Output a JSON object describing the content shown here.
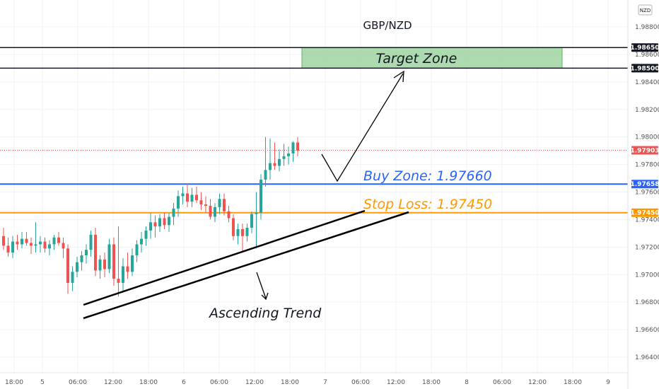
{
  "title": "GBP/NZD",
  "currency_badge": "NZD",
  "colors": {
    "up": "#26a69a",
    "down": "#ef5350",
    "buy": "#2962ff",
    "stop": "#ff9800",
    "target_fill": "#a5d6a7",
    "target_border": "#4caf50",
    "current": "#ef5350",
    "grid": "#f0f3fa"
  },
  "chart_data": {
    "type": "candlestick",
    "title": "GBP/NZD",
    "y_ticks": [
      "1.96400",
      "1.96600",
      "1.96800",
      "1.97000",
      "1.97200",
      "1.97400",
      "1.97600",
      "1.97800",
      "1.98000",
      "1.98200",
      "1.98400",
      "1.98600",
      "1.98800"
    ],
    "x_ticks": [
      "18:00",
      "5",
      "06:00",
      "12:00",
      "18:00",
      "6",
      "06:00",
      "12:00",
      "18:00",
      "7",
      "06:00",
      "12:00",
      "18:00",
      "8",
      "06:00",
      "12:00",
      "18:00",
      "9"
    ],
    "ylim": [
      1.9633,
      1.9905
    ],
    "grid": true,
    "price_tags": {
      "target_top": "1.98650",
      "target_bottom": "1.98500",
      "current": "1.97903",
      "buy": "1.97658",
      "stop": "1.97450"
    },
    "levels": {
      "target_top": 1.9865,
      "target_bottom": 1.985,
      "current": 1.97903,
      "buy": 1.97658,
      "stop": 1.9745
    },
    "annotations": {
      "target": "Target Zone",
      "buy": "Buy Zone: 1.97660",
      "stop": "Stop Loss: 1.97450",
      "trend": "Ascending Trend"
    },
    "candles": [
      {
        "o": 1.9728,
        "h": 1.9734,
        "l": 1.9718,
        "c": 1.9721
      },
      {
        "o": 1.9721,
        "h": 1.9727,
        "l": 1.9713,
        "c": 1.9716
      },
      {
        "o": 1.9716,
        "h": 1.9728,
        "l": 1.9712,
        "c": 1.9724
      },
      {
        "o": 1.9724,
        "h": 1.9729,
        "l": 1.9718,
        "c": 1.9722
      },
      {
        "o": 1.9722,
        "h": 1.9731,
        "l": 1.9719,
        "c": 1.9726
      },
      {
        "o": 1.9726,
        "h": 1.9731,
        "l": 1.9721,
        "c": 1.9723
      },
      {
        "o": 1.9723,
        "h": 1.9727,
        "l": 1.9715,
        "c": 1.9721
      },
      {
        "o": 1.9721,
        "h": 1.9738,
        "l": 1.9716,
        "c": 1.9722
      },
      {
        "o": 1.9722,
        "h": 1.9728,
        "l": 1.9716,
        "c": 1.9724
      },
      {
        "o": 1.9724,
        "h": 1.9727,
        "l": 1.9716,
        "c": 1.9719
      },
      {
        "o": 1.9719,
        "h": 1.9725,
        "l": 1.9714,
        "c": 1.9722
      },
      {
        "o": 1.9722,
        "h": 1.9729,
        "l": 1.9718,
        "c": 1.9727
      },
      {
        "o": 1.9727,
        "h": 1.9731,
        "l": 1.9721,
        "c": 1.9723
      },
      {
        "o": 1.9723,
        "h": 1.9727,
        "l": 1.9712,
        "c": 1.9719
      },
      {
        "o": 1.9719,
        "h": 1.9722,
        "l": 1.9686,
        "c": 1.9694
      },
      {
        "o": 1.9694,
        "h": 1.9706,
        "l": 1.9688,
        "c": 1.9702
      },
      {
        "o": 1.9702,
        "h": 1.9713,
        "l": 1.9698,
        "c": 1.9709
      },
      {
        "o": 1.9709,
        "h": 1.9717,
        "l": 1.9703,
        "c": 1.9714
      },
      {
        "o": 1.9714,
        "h": 1.9722,
        "l": 1.9708,
        "c": 1.9718
      },
      {
        "o": 1.9718,
        "h": 1.9732,
        "l": 1.9713,
        "c": 1.9729
      },
      {
        "o": 1.9729,
        "h": 1.9734,
        "l": 1.9699,
        "c": 1.9703
      },
      {
        "o": 1.9703,
        "h": 1.9714,
        "l": 1.9697,
        "c": 1.9711
      },
      {
        "o": 1.9711,
        "h": 1.9716,
        "l": 1.9698,
        "c": 1.9704
      },
      {
        "o": 1.9704,
        "h": 1.9726,
        "l": 1.9701,
        "c": 1.9722
      },
      {
        "o": 1.9722,
        "h": 1.9727,
        "l": 1.9692,
        "c": 1.9697
      },
      {
        "o": 1.9697,
        "h": 1.9735,
        "l": 1.9684,
        "c": 1.9694
      },
      {
        "o": 1.9694,
        "h": 1.9712,
        "l": 1.9687,
        "c": 1.9706
      },
      {
        "o": 1.9706,
        "h": 1.9716,
        "l": 1.9697,
        "c": 1.9702
      },
      {
        "o": 1.9702,
        "h": 1.9719,
        "l": 1.9699,
        "c": 1.9714
      },
      {
        "o": 1.9714,
        "h": 1.9725,
        "l": 1.9709,
        "c": 1.9722
      },
      {
        "o": 1.9722,
        "h": 1.9731,
        "l": 1.9716,
        "c": 1.9726
      },
      {
        "o": 1.9726,
        "h": 1.9735,
        "l": 1.9721,
        "c": 1.9732
      },
      {
        "o": 1.9732,
        "h": 1.9745,
        "l": 1.9726,
        "c": 1.9738
      },
      {
        "o": 1.9738,
        "h": 1.9743,
        "l": 1.9727,
        "c": 1.9735
      },
      {
        "o": 1.9735,
        "h": 1.9744,
        "l": 1.9731,
        "c": 1.9741
      },
      {
        "o": 1.9741,
        "h": 1.9745,
        "l": 1.9733,
        "c": 1.9736
      },
      {
        "o": 1.9736,
        "h": 1.9745,
        "l": 1.9731,
        "c": 1.9742
      },
      {
        "o": 1.9742,
        "h": 1.9752,
        "l": 1.9736,
        "c": 1.9748
      },
      {
        "o": 1.9748,
        "h": 1.9761,
        "l": 1.9742,
        "c": 1.9757
      },
      {
        "o": 1.9757,
        "h": 1.9764,
        "l": 1.9751,
        "c": 1.9759
      },
      {
        "o": 1.9759,
        "h": 1.9766,
        "l": 1.9749,
        "c": 1.9753
      },
      {
        "o": 1.9753,
        "h": 1.9763,
        "l": 1.9749,
        "c": 1.9758
      },
      {
        "o": 1.9758,
        "h": 1.9764,
        "l": 1.9752,
        "c": 1.9754
      },
      {
        "o": 1.9754,
        "h": 1.976,
        "l": 1.9747,
        "c": 1.9751
      },
      {
        "o": 1.9751,
        "h": 1.9757,
        "l": 1.9745,
        "c": 1.975
      },
      {
        "o": 1.975,
        "h": 1.9755,
        "l": 1.974,
        "c": 1.9742
      },
      {
        "o": 1.9742,
        "h": 1.9752,
        "l": 1.9738,
        "c": 1.9749
      },
      {
        "o": 1.9749,
        "h": 1.9759,
        "l": 1.9744,
        "c": 1.9755
      },
      {
        "o": 1.9755,
        "h": 1.9759,
        "l": 1.9743,
        "c": 1.9746
      },
      {
        "o": 1.9746,
        "h": 1.975,
        "l": 1.9738,
        "c": 1.9741
      },
      {
        "o": 1.9741,
        "h": 1.9744,
        "l": 1.9725,
        "c": 1.9728
      },
      {
        "o": 1.9728,
        "h": 1.9737,
        "l": 1.9722,
        "c": 1.9733
      },
      {
        "o": 1.9733,
        "h": 1.9737,
        "l": 1.9717,
        "c": 1.9728
      },
      {
        "o": 1.9728,
        "h": 1.9737,
        "l": 1.9724,
        "c": 1.9734
      },
      {
        "o": 1.9734,
        "h": 1.9746,
        "l": 1.973,
        "c": 1.9744
      },
      {
        "o": 1.9744,
        "h": 1.976,
        "l": 1.9719,
        "c": 1.9745
      },
      {
        "o": 1.9745,
        "h": 1.9773,
        "l": 1.974,
        "c": 1.9769
      },
      {
        "o": 1.9769,
        "h": 1.98,
        "l": 1.9764,
        "c": 1.9776
      },
      {
        "o": 1.9776,
        "h": 1.9799,
        "l": 1.9769,
        "c": 1.9781
      },
      {
        "o": 1.9781,
        "h": 1.9796,
        "l": 1.9776,
        "c": 1.9779
      },
      {
        "o": 1.9779,
        "h": 1.9791,
        "l": 1.9775,
        "c": 1.9784
      },
      {
        "o": 1.9784,
        "h": 1.9795,
        "l": 1.9779,
        "c": 1.9786
      },
      {
        "o": 1.9786,
        "h": 1.9793,
        "l": 1.978,
        "c": 1.9788
      },
      {
        "o": 1.9788,
        "h": 1.9797,
        "l": 1.9782,
        "c": 1.9796
      },
      {
        "o": 1.9796,
        "h": 1.98,
        "l": 1.9786,
        "c": 1.979
      }
    ]
  }
}
